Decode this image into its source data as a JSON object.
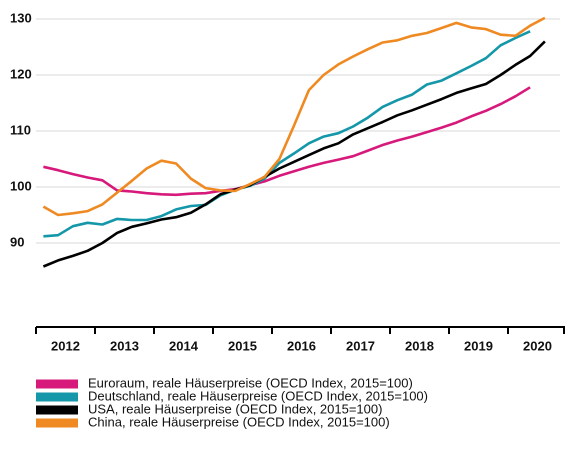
{
  "chart_data": {
    "type": "line",
    "x": [
      2012.125,
      2012.375,
      2012.625,
      2012.875,
      2013.125,
      2013.375,
      2013.625,
      2013.875,
      2014.125,
      2014.375,
      2014.625,
      2014.875,
      2015.125,
      2015.375,
      2015.625,
      2015.875,
      2016.125,
      2016.375,
      2016.625,
      2016.875,
      2017.125,
      2017.375,
      2017.625,
      2017.875,
      2018.125,
      2018.375,
      2018.625,
      2018.875,
      2019.125,
      2019.375,
      2019.625,
      2019.875,
      2020.125,
      2020.375,
      2020.625
    ],
    "xlim": [
      2012,
      2021
    ],
    "xticks": [
      2012,
      2013,
      2014,
      2015,
      2016,
      2017,
      2018,
      2019,
      2020,
      2021
    ],
    "categories": [
      "2012",
      "2013",
      "2014",
      "2015",
      "2016",
      "2017",
      "2018",
      "2019",
      "2020"
    ],
    "ylim": [
      75,
      130
    ],
    "yticks": [
      90,
      100,
      110,
      120,
      130
    ],
    "grid": true,
    "series": [
      {
        "name": "Euroraum, reale Häuserpreise (OECD Index, 2015=100)",
        "color": "#d6197a",
        "values": [
          103.6,
          103.0,
          102.3,
          101.7,
          101.2,
          99.4,
          99.2,
          98.9,
          98.7,
          98.6,
          98.8,
          98.9,
          99.3,
          99.6,
          100.3,
          101.0,
          102.0,
          102.8,
          103.6,
          104.3,
          104.9,
          105.5,
          106.5,
          107.5,
          108.3,
          109.0,
          109.8,
          110.6,
          111.5,
          112.6,
          113.6,
          114.8,
          116.2,
          117.8,
          null
        ]
      },
      {
        "name": "Deutschland, reale Häuserpreise (OECD Index, 2015=100)",
        "color": "#1497a9",
        "values": [
          91.2,
          91.4,
          93.0,
          93.6,
          93.3,
          94.3,
          94.1,
          94.1,
          94.8,
          96.0,
          96.6,
          96.8,
          98.5,
          99.5,
          100.2,
          101.5,
          104.3,
          106.0,
          107.8,
          109.0,
          109.6,
          110.8,
          112.4,
          114.3,
          115.5,
          116.5,
          118.3,
          119.0,
          120.3,
          121.6,
          123.0,
          125.3,
          126.6,
          127.8,
          null
        ]
      },
      {
        "name": "USA, reale Häuserpreise (OECD Index, 2015=100)",
        "color": "#000000",
        "values": [
          85.8,
          86.9,
          87.7,
          88.6,
          90.0,
          91.8,
          92.9,
          93.5,
          94.2,
          94.6,
          95.4,
          96.9,
          98.7,
          99.5,
          100.3,
          101.8,
          103.3,
          104.5,
          105.7,
          106.9,
          107.8,
          109.4,
          110.5,
          111.6,
          112.8,
          113.7,
          114.7,
          115.7,
          116.8,
          117.6,
          118.4,
          120.0,
          121.8,
          123.4,
          126.0
        ]
      },
      {
        "name": "China, reale Häuserpreise (OECD Index, 2015=100)",
        "color": "#ef8a22",
        "values": [
          96.5,
          95.0,
          95.3,
          95.7,
          96.9,
          99.0,
          101.1,
          103.3,
          104.7,
          104.2,
          101.5,
          99.8,
          99.4,
          99.3,
          100.5,
          101.8,
          105.0,
          111.0,
          117.3,
          120.0,
          121.9,
          123.3,
          124.6,
          125.8,
          126.2,
          127.0,
          127.5,
          128.4,
          129.3,
          128.5,
          128.2,
          127.2,
          127.0,
          128.8,
          130.2
        ]
      }
    ]
  }
}
